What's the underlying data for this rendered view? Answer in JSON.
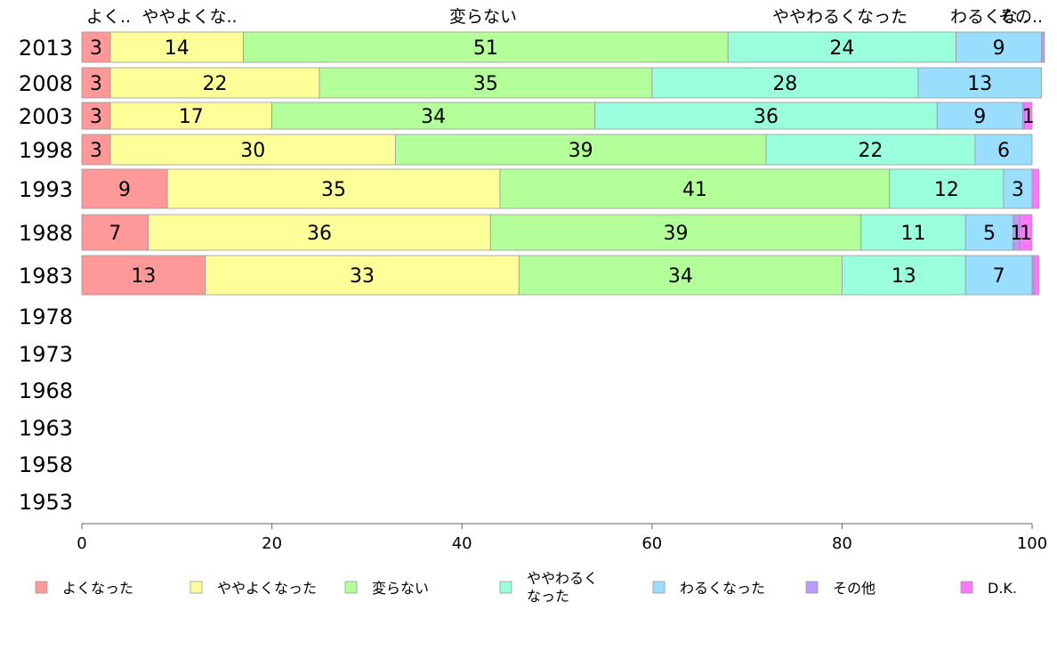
{
  "chart_data": {
    "type": "bar",
    "orientation": "horizontal",
    "stacked": true,
    "title": "",
    "xlabel": "",
    "ylabel": "",
    "xlim": [
      0,
      100
    ],
    "x_ticks": [
      "0",
      "20",
      "40",
      "60",
      "80",
      "100"
    ],
    "grid": false,
    "legend_position": "bottom",
    "top_category_labels": [
      "よく..",
      "ややよくな..",
      "変らない",
      "ややわるくなった",
      "わるくな..",
      "その.."
    ],
    "categories": [
      "2013",
      "2008",
      "2003",
      "1998",
      "1993",
      "1988",
      "1983",
      "1978",
      "1973",
      "1968",
      "1963",
      "1958",
      "1953"
    ],
    "series": [
      {
        "name": "よくなった",
        "color": "#FF9999",
        "values": [
          3,
          3,
          3,
          3,
          9,
          7,
          13,
          null,
          null,
          null,
          null,
          null,
          null
        ],
        "labels": [
          "3",
          "3",
          "3",
          "3",
          "9",
          "7",
          "13",
          "",
          "",
          "",
          "",
          "",
          ""
        ]
      },
      {
        "name": "ややよくなった",
        "color": "#FFFF99",
        "values": [
          14,
          22,
          17,
          30,
          35,
          36,
          33,
          null,
          null,
          null,
          null,
          null,
          null
        ],
        "labels": [
          "14",
          "22",
          "17",
          "30",
          "35",
          "36",
          "33",
          "",
          "",
          "",
          "",
          "",
          ""
        ]
      },
      {
        "name": "変らない",
        "color": "#B3FF99",
        "values": [
          51,
          35,
          34,
          39,
          41,
          39,
          34,
          null,
          null,
          null,
          null,
          null,
          null
        ],
        "labels": [
          "51",
          "35",
          "34",
          "39",
          "41",
          "39",
          "34",
          "",
          "",
          "",
          "",
          "",
          ""
        ]
      },
      {
        "name": "ややわるくなった",
        "color": "#99FFDD",
        "values": [
          24,
          28,
          36,
          22,
          12,
          11,
          13,
          null,
          null,
          null,
          null,
          null,
          null
        ],
        "labels": [
          "24",
          "28",
          "36",
          "22",
          "12",
          "11",
          "13",
          "",
          "",
          "",
          "",
          "",
          ""
        ]
      },
      {
        "name": "わるくなった",
        "color": "#99DDFF",
        "values": [
          9,
          13,
          9,
          6,
          3,
          5,
          7,
          null,
          null,
          null,
          null,
          null,
          null
        ],
        "labels": [
          "9",
          "13",
          "9",
          "6",
          "3",
          "5",
          "7",
          "",
          "",
          "",
          "",
          "",
          ""
        ]
      },
      {
        "name": "その他",
        "color": "#BB99FF",
        "values": [
          0.3,
          0,
          0.2,
          0,
          0,
          0.7,
          0.2,
          null,
          null,
          null,
          null,
          null,
          null
        ],
        "labels": [
          "",
          "",
          "",
          "",
          "",
          "",
          "",
          "",
          "",
          "",
          "",
          "",
          ""
        ]
      },
      {
        "name": "D.K.",
        "color": "#FF77FF",
        "values": [
          0,
          0,
          0.8,
          0,
          0.7,
          1.3,
          0.5,
          null,
          null,
          null,
          null,
          null,
          null
        ],
        "labels": [
          "",
          "",
          "1",
          "",
          "",
          "1",
          "",
          "",
          "",
          "",
          "",
          "",
          ""
        ]
      }
    ],
    "extra_annotations": [
      {
        "row": "1988",
        "series": "その他",
        "text": "1"
      }
    ]
  },
  "legend": {
    "items": [
      {
        "label": "よくなった",
        "color": "#FF9999"
      },
      {
        "label": "ややよくなった",
        "color": "#FFFF99"
      },
      {
        "label": "変らない",
        "color": "#B3FF99"
      },
      {
        "label": "ややわるく\nなった",
        "color": "#99FFDD"
      },
      {
        "label": "わるくなった",
        "color": "#99DDFF"
      },
      {
        "label": "その他",
        "color": "#BB99FF"
      },
      {
        "label": "D.K.",
        "color": "#FF77FF"
      }
    ]
  }
}
